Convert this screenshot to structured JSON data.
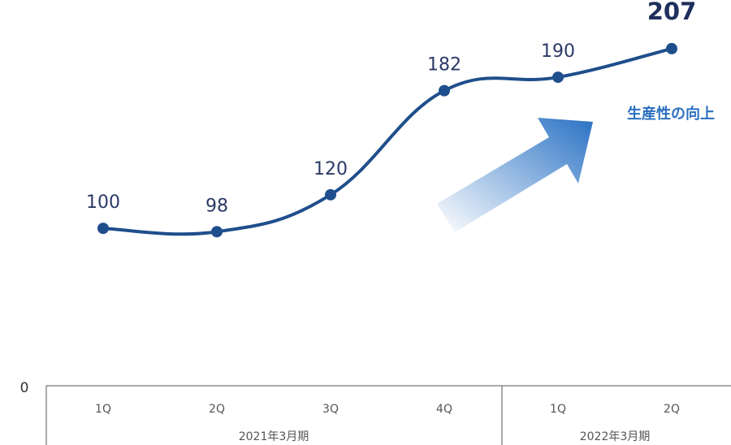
{
  "chart_data": {
    "type": "line",
    "categories": [
      "1Q",
      "2Q",
      "3Q",
      "4Q",
      "1Q",
      "2Q"
    ],
    "groups": [
      {
        "label": "2021年3月期",
        "span": 4
      },
      {
        "label": "2022年3月期",
        "span": 2
      }
    ],
    "series": [
      {
        "values": [
          100,
          98,
          120,
          182,
          190,
          207
        ]
      }
    ],
    "data_labels": [
      "100",
      "98",
      "120",
      "182",
      "190",
      "207"
    ],
    "emphasized_index": 5,
    "y_axis_tick": "0",
    "annotation": "生産性の向上",
    "line_color": "#1f4e8c",
    "arrow_color": "#2a72c4",
    "annotation_color": "#2a6fc0",
    "grid": false,
    "legend": "none"
  }
}
